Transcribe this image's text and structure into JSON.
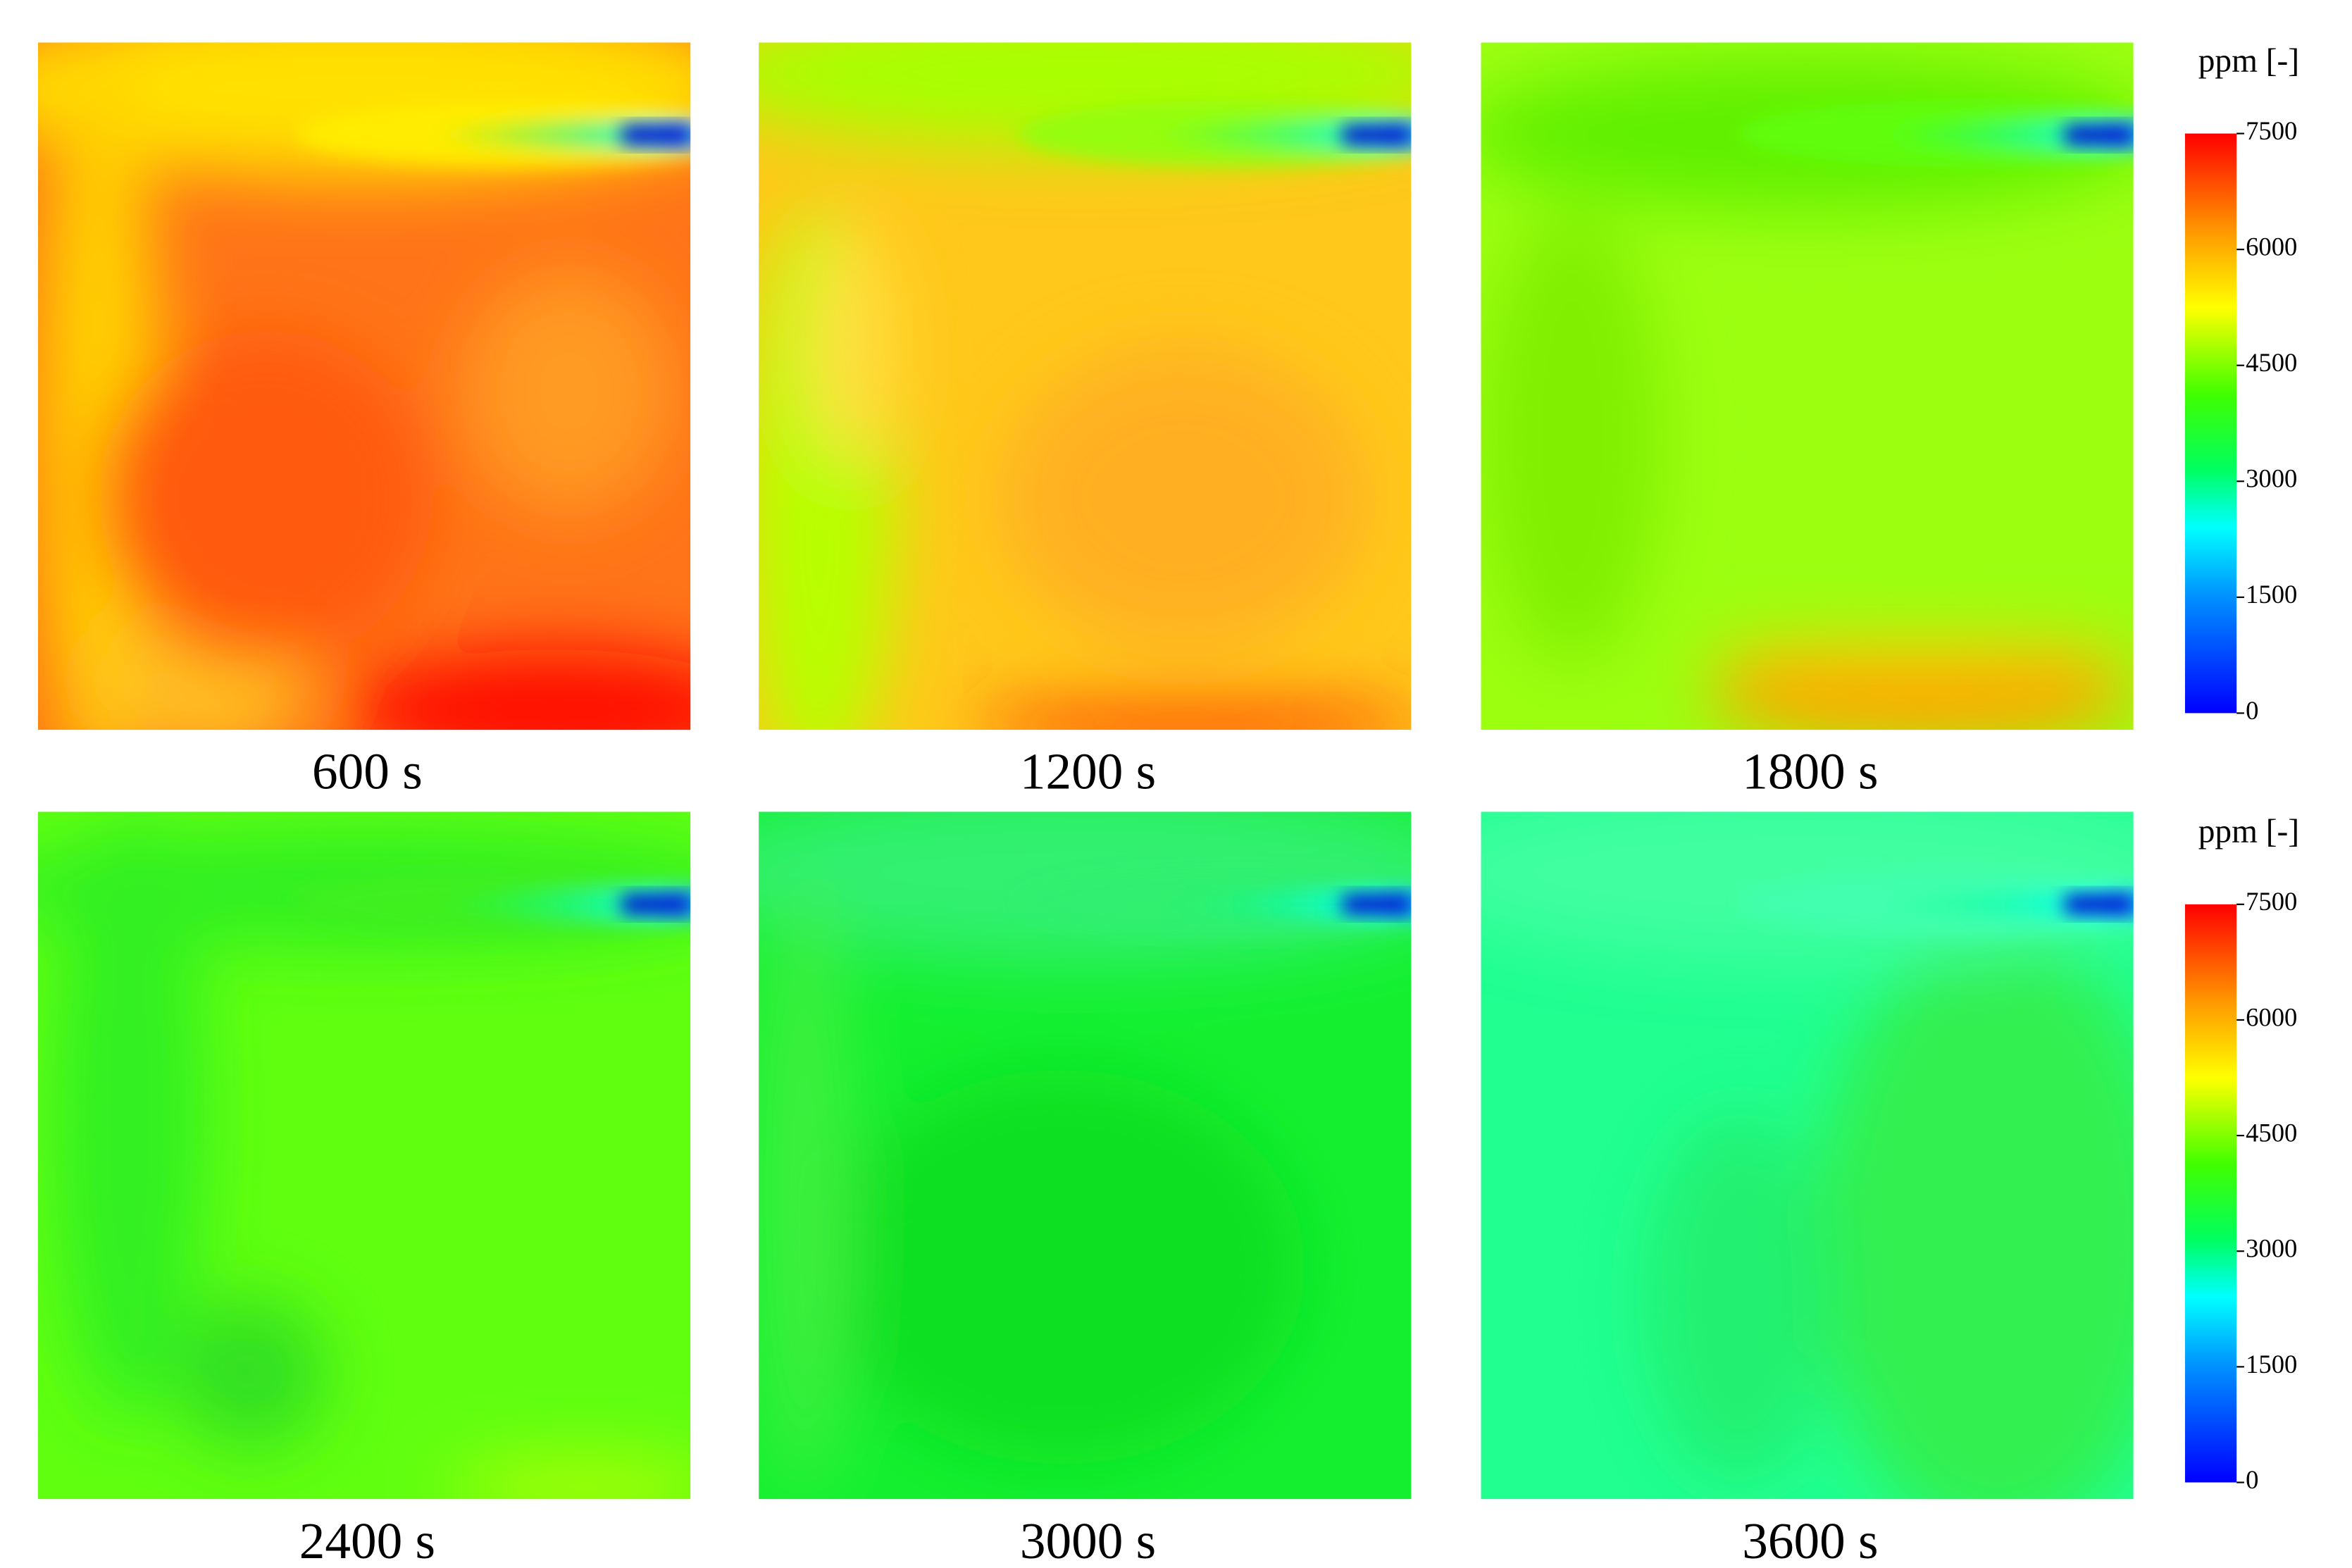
{
  "panels": [
    {
      "label": "600 s"
    },
    {
      "label": "1200 s"
    },
    {
      "label": "1800 s"
    },
    {
      "label": "2400 s"
    },
    {
      "label": "3000 s"
    },
    {
      "label": "3600 s"
    }
  ],
  "colorbars": [
    {
      "title": "ppm [-]",
      "limits": [
        0,
        7500
      ],
      "ticks": [
        0,
        1500,
        3000,
        4500,
        6000,
        7500
      ]
    },
    {
      "title": "ppm [-]",
      "limits": [
        0,
        7500
      ],
      "ticks": [
        0,
        1500,
        3000,
        4500,
        6000,
        7500
      ]
    }
  ]
}
